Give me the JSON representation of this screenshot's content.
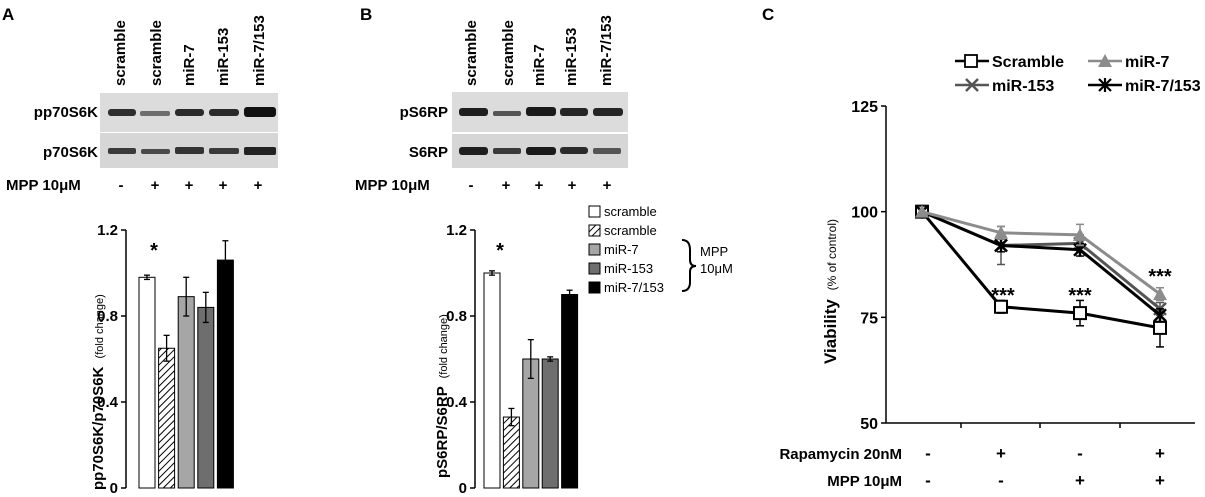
{
  "panel_a": {
    "letter": "A",
    "lanes": [
      "scramble",
      "scramble",
      "miR-7",
      "miR-153",
      "miR-7/153"
    ],
    "blot_labels": [
      "pp70S6K",
      "p70S6K"
    ],
    "mpp_label": "MPP 10μM",
    "mpp_signs": [
      "-",
      "+",
      "+",
      "+",
      "+"
    ],
    "ylabel_main": "pp70S6K/p70S6K",
    "ylabel_unit": "(fold change)",
    "asterisk": "*"
  },
  "panel_b": {
    "letter": "B",
    "lanes": [
      "scramble",
      "scramble",
      "miR-7",
      "miR-153",
      "miR-7/153"
    ],
    "blot_labels": [
      "pS6RP",
      "S6RP"
    ],
    "mpp_label": "MPP 10μM",
    "mpp_signs": [
      "-",
      "+",
      "+",
      "+",
      "+"
    ],
    "ylabel_main": "pS6RP/S6RP",
    "ylabel_unit": "(fold change)",
    "asterisk": "*",
    "legend": {
      "items": [
        "scramble",
        "scramble",
        "miR-7",
        "miR-153",
        "miR-7/153"
      ],
      "bracket_label_1": "MPP",
      "bracket_label_2": "10μM"
    }
  },
  "panel_c": {
    "letter": "C",
    "legend": [
      "Scramble",
      "miR-7",
      "miR-153",
      "miR-7/153"
    ],
    "ylabel_main": "Viability",
    "ylabel_unit": "(% of control)",
    "rows": [
      {
        "label": "Rapamycin 20nM",
        "signs": [
          "-",
          "+",
          "-",
          "+"
        ]
      },
      {
        "label": "MPP 10μM",
        "signs": [
          "-",
          "-",
          "+",
          "+"
        ]
      }
    ],
    "stars": [
      "***",
      "***",
      "***"
    ]
  },
  "colors": {
    "scramble": "#ffffff",
    "scramble_mpp": "hatched",
    "mir7": "#a6a6a6",
    "mir153": "#6e6e6e",
    "mir7_153": "#000000",
    "line_mir7": "#8c8c8c"
  },
  "chart_data": [
    {
      "type": "bar",
      "panel": "A",
      "categories": [
        "scramble",
        "scramble",
        "miR-7",
        "miR-153",
        "miR-7/153"
      ],
      "values": [
        0.98,
        0.65,
        0.89,
        0.84,
        1.06
      ],
      "errors": [
        0.01,
        0.06,
        0.09,
        0.07,
        0.09
      ],
      "ylim": [
        0,
        1.2
      ],
      "yticks": [
        0,
        0.4,
        0.8,
        1.2
      ],
      "ytick_labels": [
        "0",
        "0.4",
        "0.8",
        "1.2"
      ],
      "ylabel": "pp70S6K/p70S6K (fold change)"
    },
    {
      "type": "bar",
      "panel": "B",
      "categories": [
        "scramble",
        "scramble",
        "miR-7",
        "miR-153",
        "miR-7/153"
      ],
      "values": [
        1.0,
        0.33,
        0.6,
        0.6,
        0.9
      ],
      "errors": [
        0.01,
        0.04,
        0.09,
        0.01,
        0.02
      ],
      "ylim": [
        0,
        1.2
      ],
      "yticks": [
        0,
        0.4,
        0.8,
        1.2
      ],
      "ytick_labels": [
        "0",
        "0.4",
        "0.8",
        "1.2"
      ],
      "ylabel": "pS6RP/S6RP (fold change)"
    },
    {
      "type": "line",
      "panel": "C",
      "x": [
        1,
        2,
        3,
        4
      ],
      "ylim": [
        50,
        125
      ],
      "yticks": [
        50,
        75,
        100,
        125
      ],
      "ytick_labels": [
        "50",
        "75",
        "100",
        "125"
      ],
      "ylabel": "Viability (% of control)",
      "series": [
        {
          "name": "Scramble",
          "values": [
            100,
            77.5,
            76,
            72.5
          ],
          "errors": [
            0,
            1.5,
            3,
            4.5
          ],
          "marker": "open-square",
          "color": "#000000"
        },
        {
          "name": "miR-7",
          "values": [
            100,
            95,
            94.5,
            80.5
          ],
          "errors": [
            0,
            1.5,
            2.5,
            1.5
          ],
          "marker": "triangle",
          "color": "#8c8c8c"
        },
        {
          "name": "miR-153",
          "values": [
            100,
            92,
            92.5,
            77
          ],
          "errors": [
            0,
            4.5,
            2,
            1.5
          ],
          "marker": "x",
          "color": "#555555"
        },
        {
          "name": "miR-7/153",
          "values": [
            100,
            92,
            91,
            75.5
          ],
          "errors": [
            0,
            1.5,
            1.5,
            1.5
          ],
          "marker": "star",
          "color": "#000000"
        }
      ]
    }
  ]
}
